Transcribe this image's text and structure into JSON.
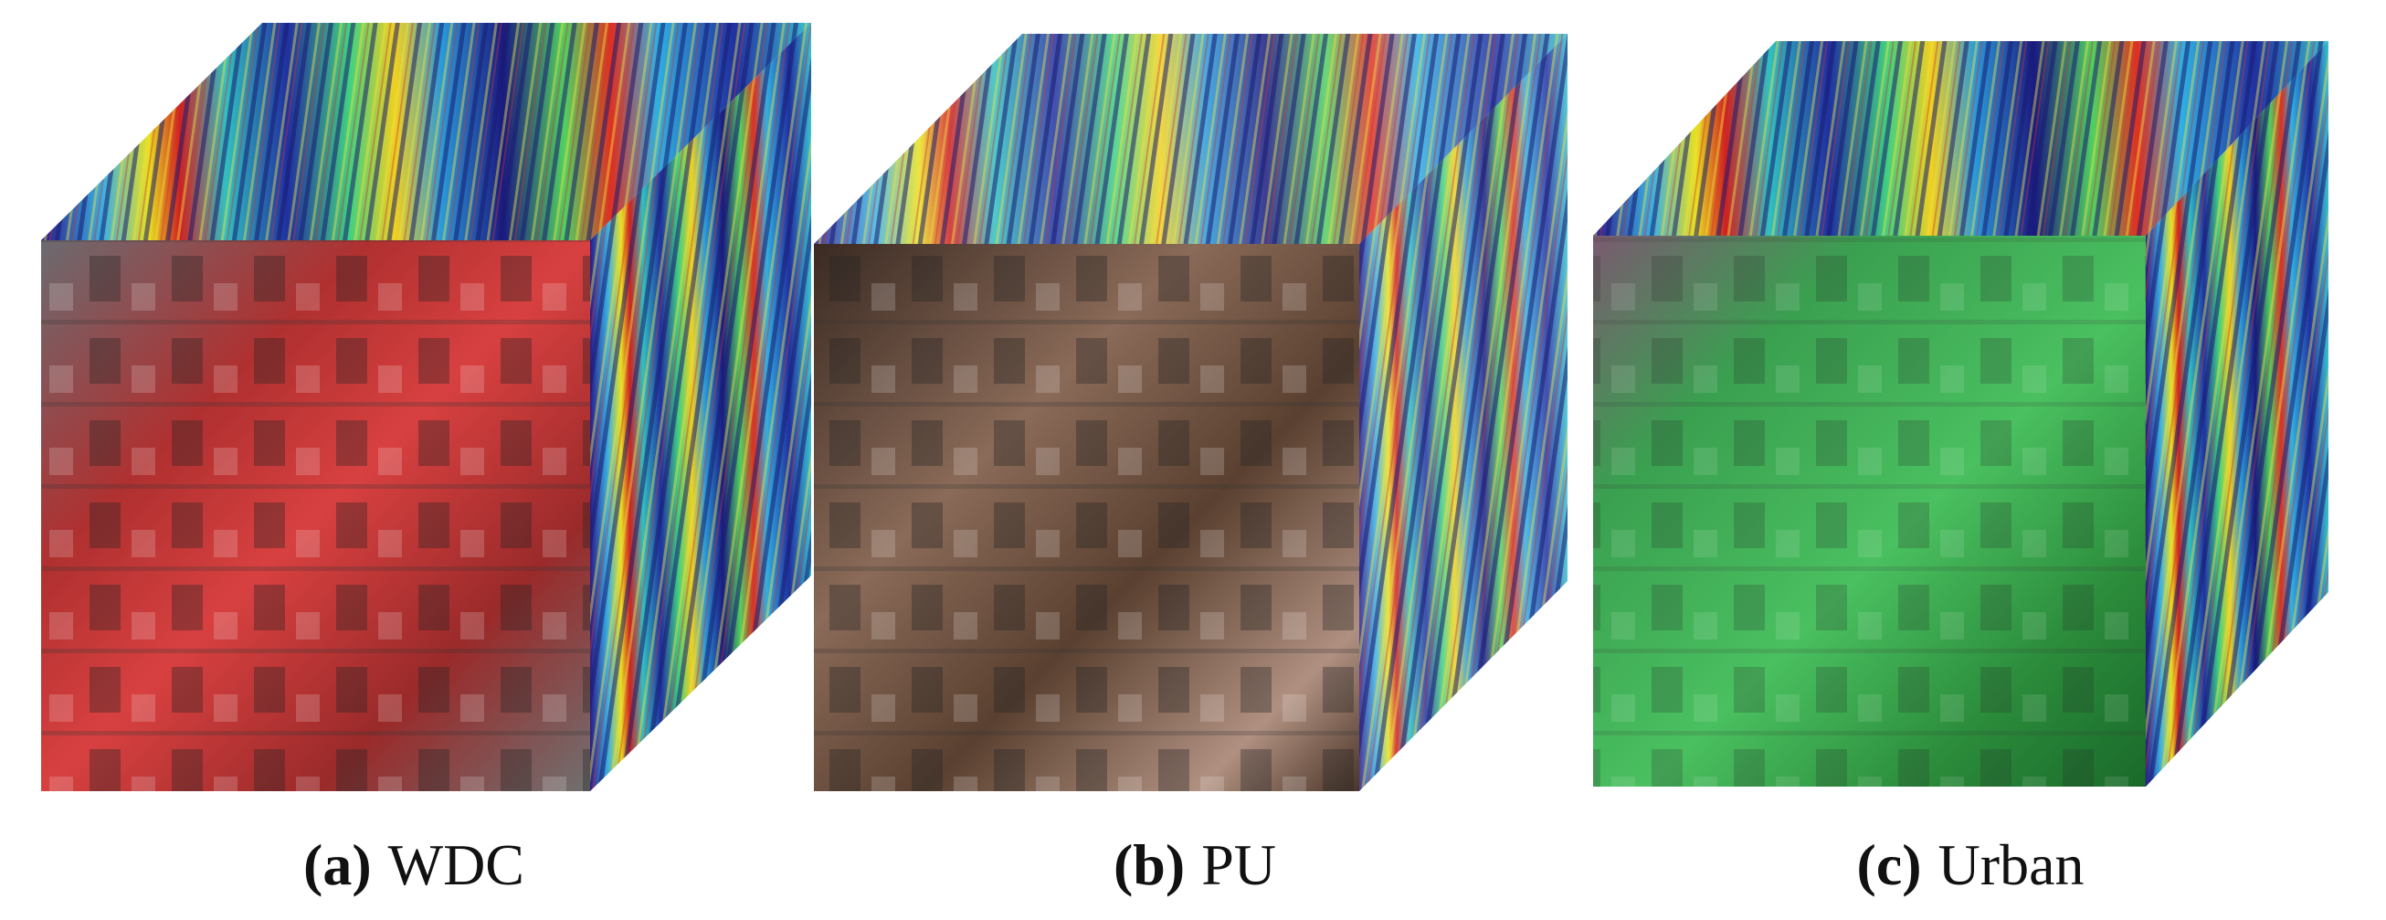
{
  "panels": [
    {
      "label": "(a)",
      "name": "WDC"
    },
    {
      "label": "(b)",
      "name": "PU"
    },
    {
      "label": "(c)",
      "name": "Urban"
    }
  ]
}
